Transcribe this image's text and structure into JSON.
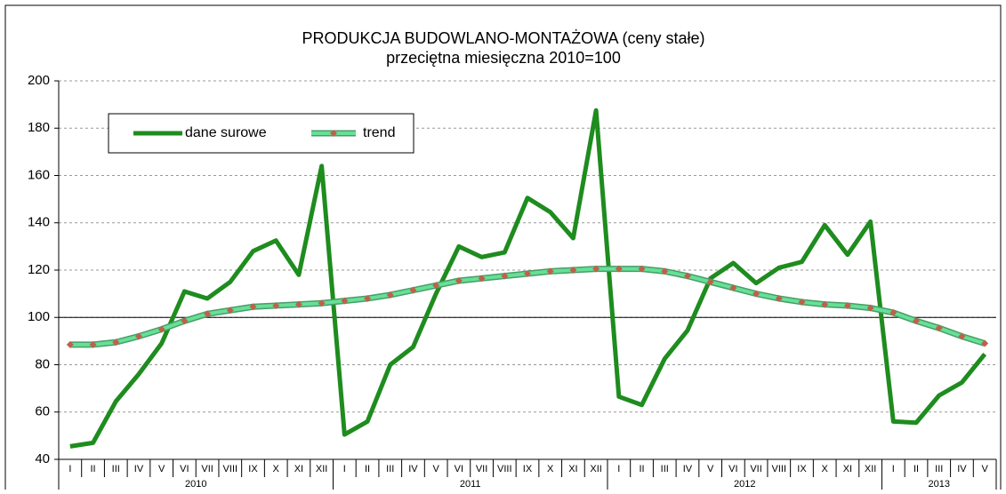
{
  "chart_data": {
    "type": "line",
    "title": "PRODUKCJA BUDOWLANO-MONTAŻOWA (ceny stałe)",
    "subtitle": "przeciętna miesięczna 2010=100",
    "categories": [
      "I",
      "II",
      "III",
      "IV",
      "V",
      "VI",
      "VII",
      "VIII",
      "IX",
      "X",
      "XI",
      "XII",
      "I",
      "II",
      "III",
      "IV",
      "V",
      "VI",
      "VII",
      "VIII",
      "IX",
      "X",
      "XI",
      "XII",
      "I",
      "II",
      "III",
      "IV",
      "V",
      "VI",
      "VII",
      "VIII",
      "IX",
      "X",
      "XI",
      "XII",
      "I",
      "II",
      "III",
      "IV",
      "V"
    ],
    "years": [
      "2010",
      "2011",
      "2012",
      "2013"
    ],
    "series": [
      {
        "name": "dane surowe",
        "color": "#1e8c1e",
        "values": [
          45.5,
          47,
          64.5,
          76,
          89,
          111,
          108,
          115,
          128,
          132.5,
          118,
          164,
          50.5,
          56,
          80,
          87.5,
          110,
          130,
          125.5,
          127.5,
          150.5,
          144.5,
          133.5,
          187.5,
          66.5,
          63,
          82.5,
          94.5,
          116.5,
          123,
          114.5,
          121,
          123.5,
          139,
          126.5,
          140.5,
          56,
          55.5,
          67,
          72.5,
          84.5
        ]
      },
      {
        "name": "trend",
        "color": "#66e096",
        "marker_color": "#c0604a",
        "values": [
          88.5,
          88.5,
          89.5,
          92,
          95,
          98.5,
          101.5,
          103,
          104.5,
          105,
          105.5,
          106,
          107,
          108,
          109.5,
          111.5,
          113.5,
          115.5,
          116.5,
          117.5,
          118.5,
          119.5,
          120,
          120.5,
          120.5,
          120.5,
          119.5,
          117.5,
          115,
          112.5,
          110,
          108,
          106.5,
          105.5,
          105,
          104,
          102,
          98.5,
          95.5,
          92,
          89
        ]
      }
    ],
    "ylim": [
      40,
      200
    ],
    "yticks": [
      40,
      60,
      80,
      100,
      120,
      140,
      160,
      180,
      200
    ],
    "reference_line": 100,
    "grid": true,
    "legend": "top-left"
  }
}
